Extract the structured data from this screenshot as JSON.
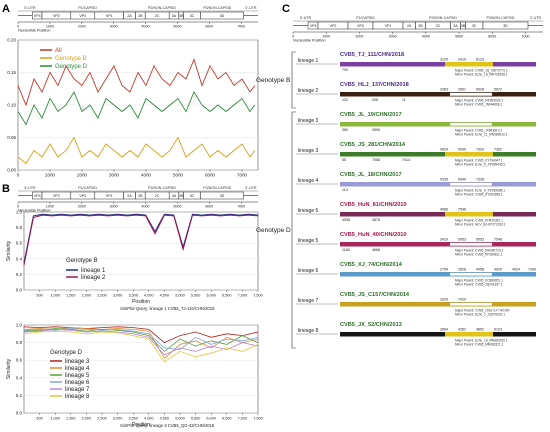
{
  "panels": {
    "a": "A",
    "b": "B",
    "c": "C"
  },
  "genome": {
    "regions": [
      "5'-UTR",
      "P1/CAPSID",
      "P2/NON-CAPSID",
      "P3/NON-CAPSID",
      "3'-UTR"
    ],
    "genes": [
      "VP4",
      "VP2",
      "VP3",
      "VP1",
      "2A",
      "2B",
      "2C",
      "3A",
      "3B",
      "3C",
      "3D"
    ],
    "axis_label": "Nucleotide Position",
    "ticks": [
      "0",
      "1000",
      "2000",
      "3000",
      "4000",
      "5000",
      "6000",
      "7000"
    ]
  },
  "chart_data": [
    {
      "type": "line",
      "panel": "A",
      "legend": [
        "All",
        "Genotype B",
        "Genotype D"
      ],
      "series_colors": [
        "#c0392b",
        "#d4a017",
        "#2e8b3d"
      ],
      "ylim": [
        0,
        0.2
      ],
      "xlim": [
        0,
        7500
      ],
      "yticks": [
        "0.00",
        "0.05",
        "0.10",
        "0.15",
        "0.20"
      ],
      "xticks": [
        "0",
        "1000",
        "2000",
        "3000",
        "4000",
        "5000",
        "6000",
        "7000"
      ],
      "series": [
        {
          "name": "All",
          "x": [
            0,
            250,
            500,
            750,
            1000,
            1250,
            1500,
            1750,
            2000,
            2250,
            2500,
            2750,
            3000,
            3250,
            3500,
            3750,
            4000,
            4250,
            4500,
            4750,
            5000,
            5250,
            5500,
            5750,
            6000,
            6250,
            6500,
            6750,
            7000,
            7250,
            7400
          ],
          "y": [
            0.13,
            0.1,
            0.14,
            0.12,
            0.15,
            0.13,
            0.16,
            0.14,
            0.13,
            0.15,
            0.12,
            0.14,
            0.16,
            0.13,
            0.12,
            0.15,
            0.13,
            0.16,
            0.14,
            0.13,
            0.15,
            0.14,
            0.17,
            0.13,
            0.16,
            0.14,
            0.15,
            0.13,
            0.14,
            0.12,
            0.13
          ]
        },
        {
          "name": "Genotype B",
          "x": [
            0,
            250,
            500,
            750,
            1000,
            1250,
            1500,
            1750,
            2000,
            2250,
            2500,
            2750,
            3000,
            3250,
            3500,
            3750,
            4000,
            4250,
            4500,
            4750,
            5000,
            5250,
            5500,
            5750,
            6000,
            6250,
            6500,
            6750,
            7000,
            7250,
            7400
          ],
          "y": [
            0.02,
            0.01,
            0.03,
            0.02,
            0.04,
            0.02,
            0.03,
            0.05,
            0.02,
            0.03,
            0.02,
            0.04,
            0.03,
            0.02,
            0.03,
            0.02,
            0.04,
            0.03,
            0.02,
            0.03,
            0.05,
            0.02,
            0.03,
            0.04,
            0.02,
            0.03,
            0.02,
            0.03,
            0.04,
            0.02,
            0.03
          ]
        },
        {
          "name": "Genotype D",
          "x": [
            0,
            250,
            500,
            750,
            1000,
            1250,
            1500,
            1750,
            2000,
            2250,
            2500,
            2750,
            3000,
            3250,
            3500,
            3750,
            4000,
            4250,
            4500,
            4750,
            5000,
            5250,
            5500,
            5750,
            6000,
            6250,
            6500,
            6750,
            7000,
            7250,
            7400
          ],
          "y": [
            0.09,
            0.07,
            0.1,
            0.08,
            0.11,
            0.09,
            0.1,
            0.12,
            0.09,
            0.1,
            0.08,
            0.11,
            0.1,
            0.09,
            0.1,
            0.08,
            0.11,
            0.1,
            0.09,
            0.1,
            0.11,
            0.09,
            0.12,
            0.1,
            0.09,
            0.1,
            0.09,
            0.1,
            0.11,
            0.09,
            0.1
          ]
        }
      ]
    },
    {
      "type": "line",
      "panel": "B-top",
      "ylabel": "Similarity",
      "xlabel": "Position",
      "ylim": [
        0,
        1.0
      ],
      "xlim": [
        0,
        7500
      ],
      "yticks": [
        "0.0",
        "0.2",
        "0.4",
        "0.6",
        "0.8",
        "1.0"
      ],
      "xticks": [
        "500",
        "1,000",
        "1,500",
        "2,000",
        "2,500",
        "3,000",
        "3,500",
        "4,000",
        "4,500",
        "5,000",
        "5,500",
        "6,000",
        "6,500",
        "7,000",
        "7,500"
      ],
      "legend_title": "Genotype B",
      "caption": "SimPlot-Query: lineage 1 CVB5_TJ-116/CHN/2018",
      "series": [
        {
          "name": "lineage 1",
          "color": "#1f2a8a",
          "x": [
            0,
            300,
            600,
            900,
            1200,
            1500,
            1800,
            2100,
            2400,
            2700,
            3000,
            3300,
            3600,
            3900,
            4200,
            4500,
            4800,
            5100,
            5400,
            5700,
            6000,
            6300,
            6600,
            6900,
            7200,
            7500
          ],
          "y": [
            0.35,
            0.95,
            0.97,
            0.96,
            0.97,
            0.96,
            0.97,
            0.96,
            0.97,
            0.96,
            0.97,
            0.96,
            0.97,
            0.96,
            0.75,
            0.97,
            0.96,
            0.55,
            0.97,
            0.96,
            0.97,
            0.96,
            0.97,
            0.96,
            0.97,
            0.96
          ]
        },
        {
          "name": "lineage 2",
          "color": "#a0154b",
          "x": [
            0,
            300,
            600,
            900,
            1200,
            1500,
            1800,
            2100,
            2400,
            2700,
            3000,
            3300,
            3600,
            3900,
            4200,
            4500,
            4800,
            5100,
            5400,
            5700,
            6000,
            6300,
            6600,
            6900,
            7200,
            7500
          ],
          "y": [
            0.32,
            0.93,
            0.96,
            0.95,
            0.96,
            0.95,
            0.96,
            0.95,
            0.96,
            0.95,
            0.96,
            0.95,
            0.96,
            0.95,
            0.72,
            0.96,
            0.95,
            0.52,
            0.96,
            0.95,
            0.96,
            0.95,
            0.96,
            0.95,
            0.96,
            0.95
          ]
        }
      ]
    },
    {
      "type": "line",
      "panel": "B-bottom",
      "ylabel": "Similarity",
      "xlabel": "Position",
      "ylim": [
        0,
        1.0
      ],
      "xlim": [
        0,
        7500
      ],
      "yticks": [
        "0.0",
        "0.2",
        "0.4",
        "0.6",
        "0.8",
        "1.0"
      ],
      "xticks": [
        "500",
        "1,000",
        "1,500",
        "2,000",
        "2,500",
        "3,000",
        "3,500",
        "4,000",
        "4,500",
        "5,000",
        "5,500",
        "6,000",
        "6,500",
        "7,000",
        "7,500"
      ],
      "legend_title": "Genotype D",
      "caption": "SimPlot-Query: lineage 3 CVB5_QG-43/CHN/2018",
      "series": [
        {
          "name": "lineage 3",
          "color": "#b22222",
          "x": [
            0,
            500,
            1000,
            1500,
            2000,
            2500,
            3000,
            3500,
            4000,
            4500,
            5000,
            5500,
            6000,
            6500,
            7000,
            7500
          ],
          "y": [
            0.98,
            0.97,
            0.98,
            0.97,
            0.96,
            0.97,
            0.98,
            0.97,
            0.95,
            0.8,
            0.88,
            0.92,
            0.86,
            0.9,
            0.88,
            0.92
          ]
        },
        {
          "name": "lineage 4",
          "color": "#e08a2e",
          "x": [
            0,
            500,
            1000,
            1500,
            2000,
            2500,
            3000,
            3500,
            4000,
            4500,
            5000,
            5500,
            6000,
            6500,
            7000,
            7500
          ],
          "y": [
            0.95,
            0.96,
            0.95,
            0.97,
            0.96,
            0.95,
            0.96,
            0.95,
            0.93,
            0.62,
            0.78,
            0.82,
            0.74,
            0.86,
            0.8,
            0.84
          ]
        },
        {
          "name": "lineage 5",
          "color": "#5a9e3a",
          "x": [
            0,
            500,
            1000,
            1500,
            2000,
            2500,
            3000,
            3500,
            4000,
            4500,
            5000,
            5500,
            6000,
            6500,
            7000,
            7500
          ],
          "y": [
            0.93,
            0.94,
            0.96,
            0.95,
            0.93,
            0.95,
            0.94,
            0.92,
            0.88,
            0.7,
            0.84,
            0.76,
            0.82,
            0.78,
            0.88,
            0.8
          ]
        },
        {
          "name": "lineage 6",
          "color": "#7fa7d6",
          "x": [
            0,
            500,
            1000,
            1500,
            2000,
            2500,
            3000,
            3500,
            4000,
            4500,
            5000,
            5500,
            6000,
            6500,
            7000,
            7500
          ],
          "y": [
            0.94,
            0.95,
            0.94,
            0.96,
            0.95,
            0.94,
            0.95,
            0.93,
            0.9,
            0.74,
            0.72,
            0.86,
            0.78,
            0.84,
            0.82,
            0.86
          ]
        },
        {
          "name": "lineage 7",
          "color": "#b48ad8",
          "x": [
            0,
            500,
            1000,
            1500,
            2000,
            2500,
            3000,
            3500,
            4000,
            4500,
            5000,
            5500,
            6000,
            6500,
            7000,
            7500
          ],
          "y": [
            0.92,
            0.93,
            0.95,
            0.94,
            0.92,
            0.93,
            0.92,
            0.9,
            0.86,
            0.66,
            0.74,
            0.7,
            0.76,
            0.72,
            0.8,
            0.76
          ]
        },
        {
          "name": "lineage 8",
          "color": "#e2c83a",
          "x": [
            0,
            500,
            1000,
            1500,
            2000,
            2500,
            3000,
            3500,
            4000,
            4500,
            5000,
            5500,
            6000,
            6500,
            7000,
            7500
          ],
          "y": [
            0.9,
            0.92,
            0.93,
            0.92,
            0.9,
            0.92,
            0.91,
            0.88,
            0.84,
            0.58,
            0.7,
            0.64,
            0.68,
            0.74,
            0.7,
            0.78
          ]
        }
      ]
    }
  ],
  "recombinants": {
    "genotype_b_label": "Genotype B",
    "genotype_d_label": "Genotype D",
    "rows": [
      {
        "name": "CVB5_TJ_111/CHN/2018",
        "lineage": "lineage 1",
        "genotype": "B",
        "nums": [
          "3120",
          "3410",
          "6123"
        ],
        "num2": [
          "790"
        ],
        "major": "Major Parent: CVB5_JQ_03070772.1",
        "minor": "Minor Parent: Echo_18_MN759146.1",
        "bar": "#7a3fa0",
        "seg": "#e0c419"
      },
      {
        "name": "CVB5_HLJ_137/CHN/2018",
        "lineage": "lineage 2",
        "genotype": "B",
        "nums": [
          "3363",
          "3501",
          "5028",
          "5872"
        ],
        "num2": [
          "132",
          "206",
          "11"
        ],
        "major": "Major Parent: CVB5_MF693639.1",
        "minor": "Minor Parent: CVB5_JN044668.1",
        "bar": "#3a2010",
        "seg": "#ffffff"
      },
      {
        "name": "CVB5_JL_19/CHN/2017",
        "lineage": "lineage 3",
        "genotype": "D",
        "nums": [],
        "num2": [
          "380",
          "3506"
        ],
        "major": "Major Parent: CVB5_JX843810.1",
        "minor": "Minor Parent: Echo_11_MN583910.1",
        "bar": "#8ab83a",
        "seg": "#ffffff"
      },
      {
        "name": "CVB5_JS_281/CHN/2014",
        "lineage": "lineage 3",
        "genotype": "D",
        "nums": [
          "4529",
          "5090",
          "7320",
          "7362"
        ],
        "num2": [
          "55",
          "7068",
          "7414"
        ],
        "major": "Major Parent: CVB5_KY794047.1",
        "minor": "Minor Parent: Echo_6_KP289435.1",
        "bar": "#3c7d2a",
        "seg": "#e0c419"
      },
      {
        "name": "CVB5_JL_18/CHN/2017",
        "lineage": "lineage 4",
        "genotype": "D",
        "nums": [
          "5335",
          "5940",
          "7338"
        ],
        "num2": [
          "114"
        ],
        "major": "Major Parent: Echo_6_KF289698.1",
        "minor": "Minor Parent: CVB5_KY092868.1",
        "bar": "#9a9ad8",
        "seg": "#ffffff"
      },
      {
        "name": "CVB5_HuN_81/CHN/2010",
        "lineage": "lineage 5",
        "genotype": "D",
        "nums": [
          "4586",
          "7548"
        ],
        "num2": [
          "4538",
          "4876"
        ],
        "major": "Major Parent: CVB5_KH420381.1",
        "minor": "Minor Parent: HEV_BJ-KP272033.1",
        "bar": "#7a2a55",
        "seg": "#e0c419"
      },
      {
        "name": "CVB5_HuN_40/CHN/2010",
        "lineage": "lineage 5",
        "genotype": "D",
        "nums": [
          "3410",
          "5053",
          "5053",
          "7548"
        ],
        "num2": [
          "1180",
          "4668"
        ],
        "major": "Major Parent: CVB5_MH280716.1",
        "minor": "Minor Parent: CVB5_KP289811.1",
        "bar": "#a7275a",
        "seg": "#ffffff"
      },
      {
        "name": "CVB5_XJ_74/CHN/2014",
        "lineage": "lineage 6",
        "genotype": "D",
        "nums": [
          "2754",
          "2828",
          "4458",
          "4920",
          "4924",
          "7390"
        ],
        "num2": [],
        "major": "Major Parent: CVB5_KC889951.1",
        "minor": "Minor Parent: CVB5_JQ041357.1",
        "bar": "#5a9ac8",
        "seg": "#ffffff"
      },
      {
        "name": "CVB5_JS_C157/CHN/2014",
        "lineage": "lineage 7",
        "genotype": "D",
        "nums": [
          "3329",
          "7429"
        ],
        "num2": [],
        "major": "Major Parent: CVB5_2016-XJ-74/CHN",
        "minor": "Minor Parent: Echo_1_JQ979202.1",
        "bar": "#c8a21e",
        "seg": "#ffffff"
      },
      {
        "name": "CVB5_JX_52/CHN/2013",
        "lineage": "lineage 8",
        "genotype": "D",
        "nums": [
          "3964",
          "4352",
          "4852",
          "6123"
        ],
        "num2": [],
        "major": "Major Parent: Echo_18_MN683760.1",
        "minor": "Minor Parent: CVB5_MN081521.1",
        "bar": "#151515",
        "seg": "#e0c419"
      }
    ]
  }
}
